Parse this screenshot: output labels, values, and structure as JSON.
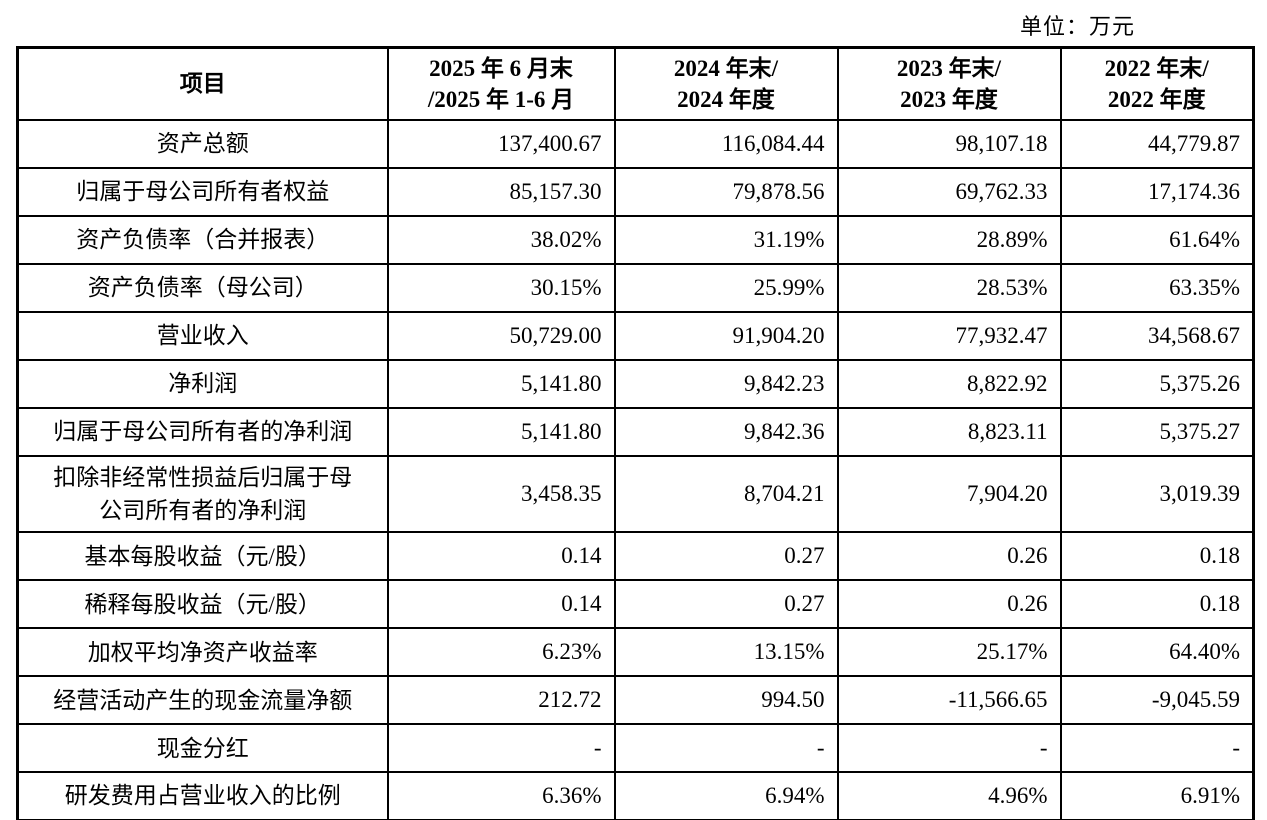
{
  "unit_label": "单位：万元",
  "table": {
    "headers": [
      "项目",
      "2025 年 6 月末\n/2025 年 1-6 月",
      "2024 年末/\n2024 年度",
      "2023 年末/\n2023 年度",
      "2022 年末/\n2022 年度"
    ],
    "rows": [
      {
        "label": "资产总额",
        "values": [
          "137,400.67",
          "116,084.44",
          "98,107.18",
          "44,779.87"
        ]
      },
      {
        "label": "归属于母公司所有者权益",
        "values": [
          "85,157.30",
          "79,878.56",
          "69,762.33",
          "17,174.36"
        ]
      },
      {
        "label": "资产负债率（合并报表）",
        "values": [
          "38.02%",
          "31.19%",
          "28.89%",
          "61.64%"
        ]
      },
      {
        "label": "资产负债率（母公司）",
        "values": [
          "30.15%",
          "25.99%",
          "28.53%",
          "63.35%"
        ]
      },
      {
        "label": "营业收入",
        "values": [
          "50,729.00",
          "91,904.20",
          "77,932.47",
          "34,568.67"
        ]
      },
      {
        "label": "净利润",
        "values": [
          "5,141.80",
          "9,842.23",
          "8,822.92",
          "5,375.26"
        ]
      },
      {
        "label": "归属于母公司所有者的净利润",
        "values": [
          "5,141.80",
          "9,842.36",
          "8,823.11",
          "5,375.27"
        ]
      },
      {
        "label": "扣除非经常性损益后归属于母公司所有者的净利润",
        "values": [
          "3,458.35",
          "8,704.21",
          "7,904.20",
          "3,019.39"
        ]
      },
      {
        "label": "基本每股收益（元/股）",
        "values": [
          "0.14",
          "0.27",
          "0.26",
          "0.18"
        ]
      },
      {
        "label": "稀释每股收益（元/股）",
        "values": [
          "0.14",
          "0.27",
          "0.26",
          "0.18"
        ]
      },
      {
        "label": "加权平均净资产收益率",
        "values": [
          "6.23%",
          "13.15%",
          "25.17%",
          "64.40%"
        ]
      },
      {
        "label": "经营活动产生的现金流量净额",
        "values": [
          "212.72",
          "994.50",
          "-11,566.65",
          "-9,045.59"
        ]
      },
      {
        "label": "现金分红",
        "values": [
          "-",
          "-",
          "-",
          "-"
        ]
      },
      {
        "label": "研发费用占营业收入的比例",
        "values": [
          "6.36%",
          "6.94%",
          "4.96%",
          "6.91%"
        ]
      }
    ]
  }
}
